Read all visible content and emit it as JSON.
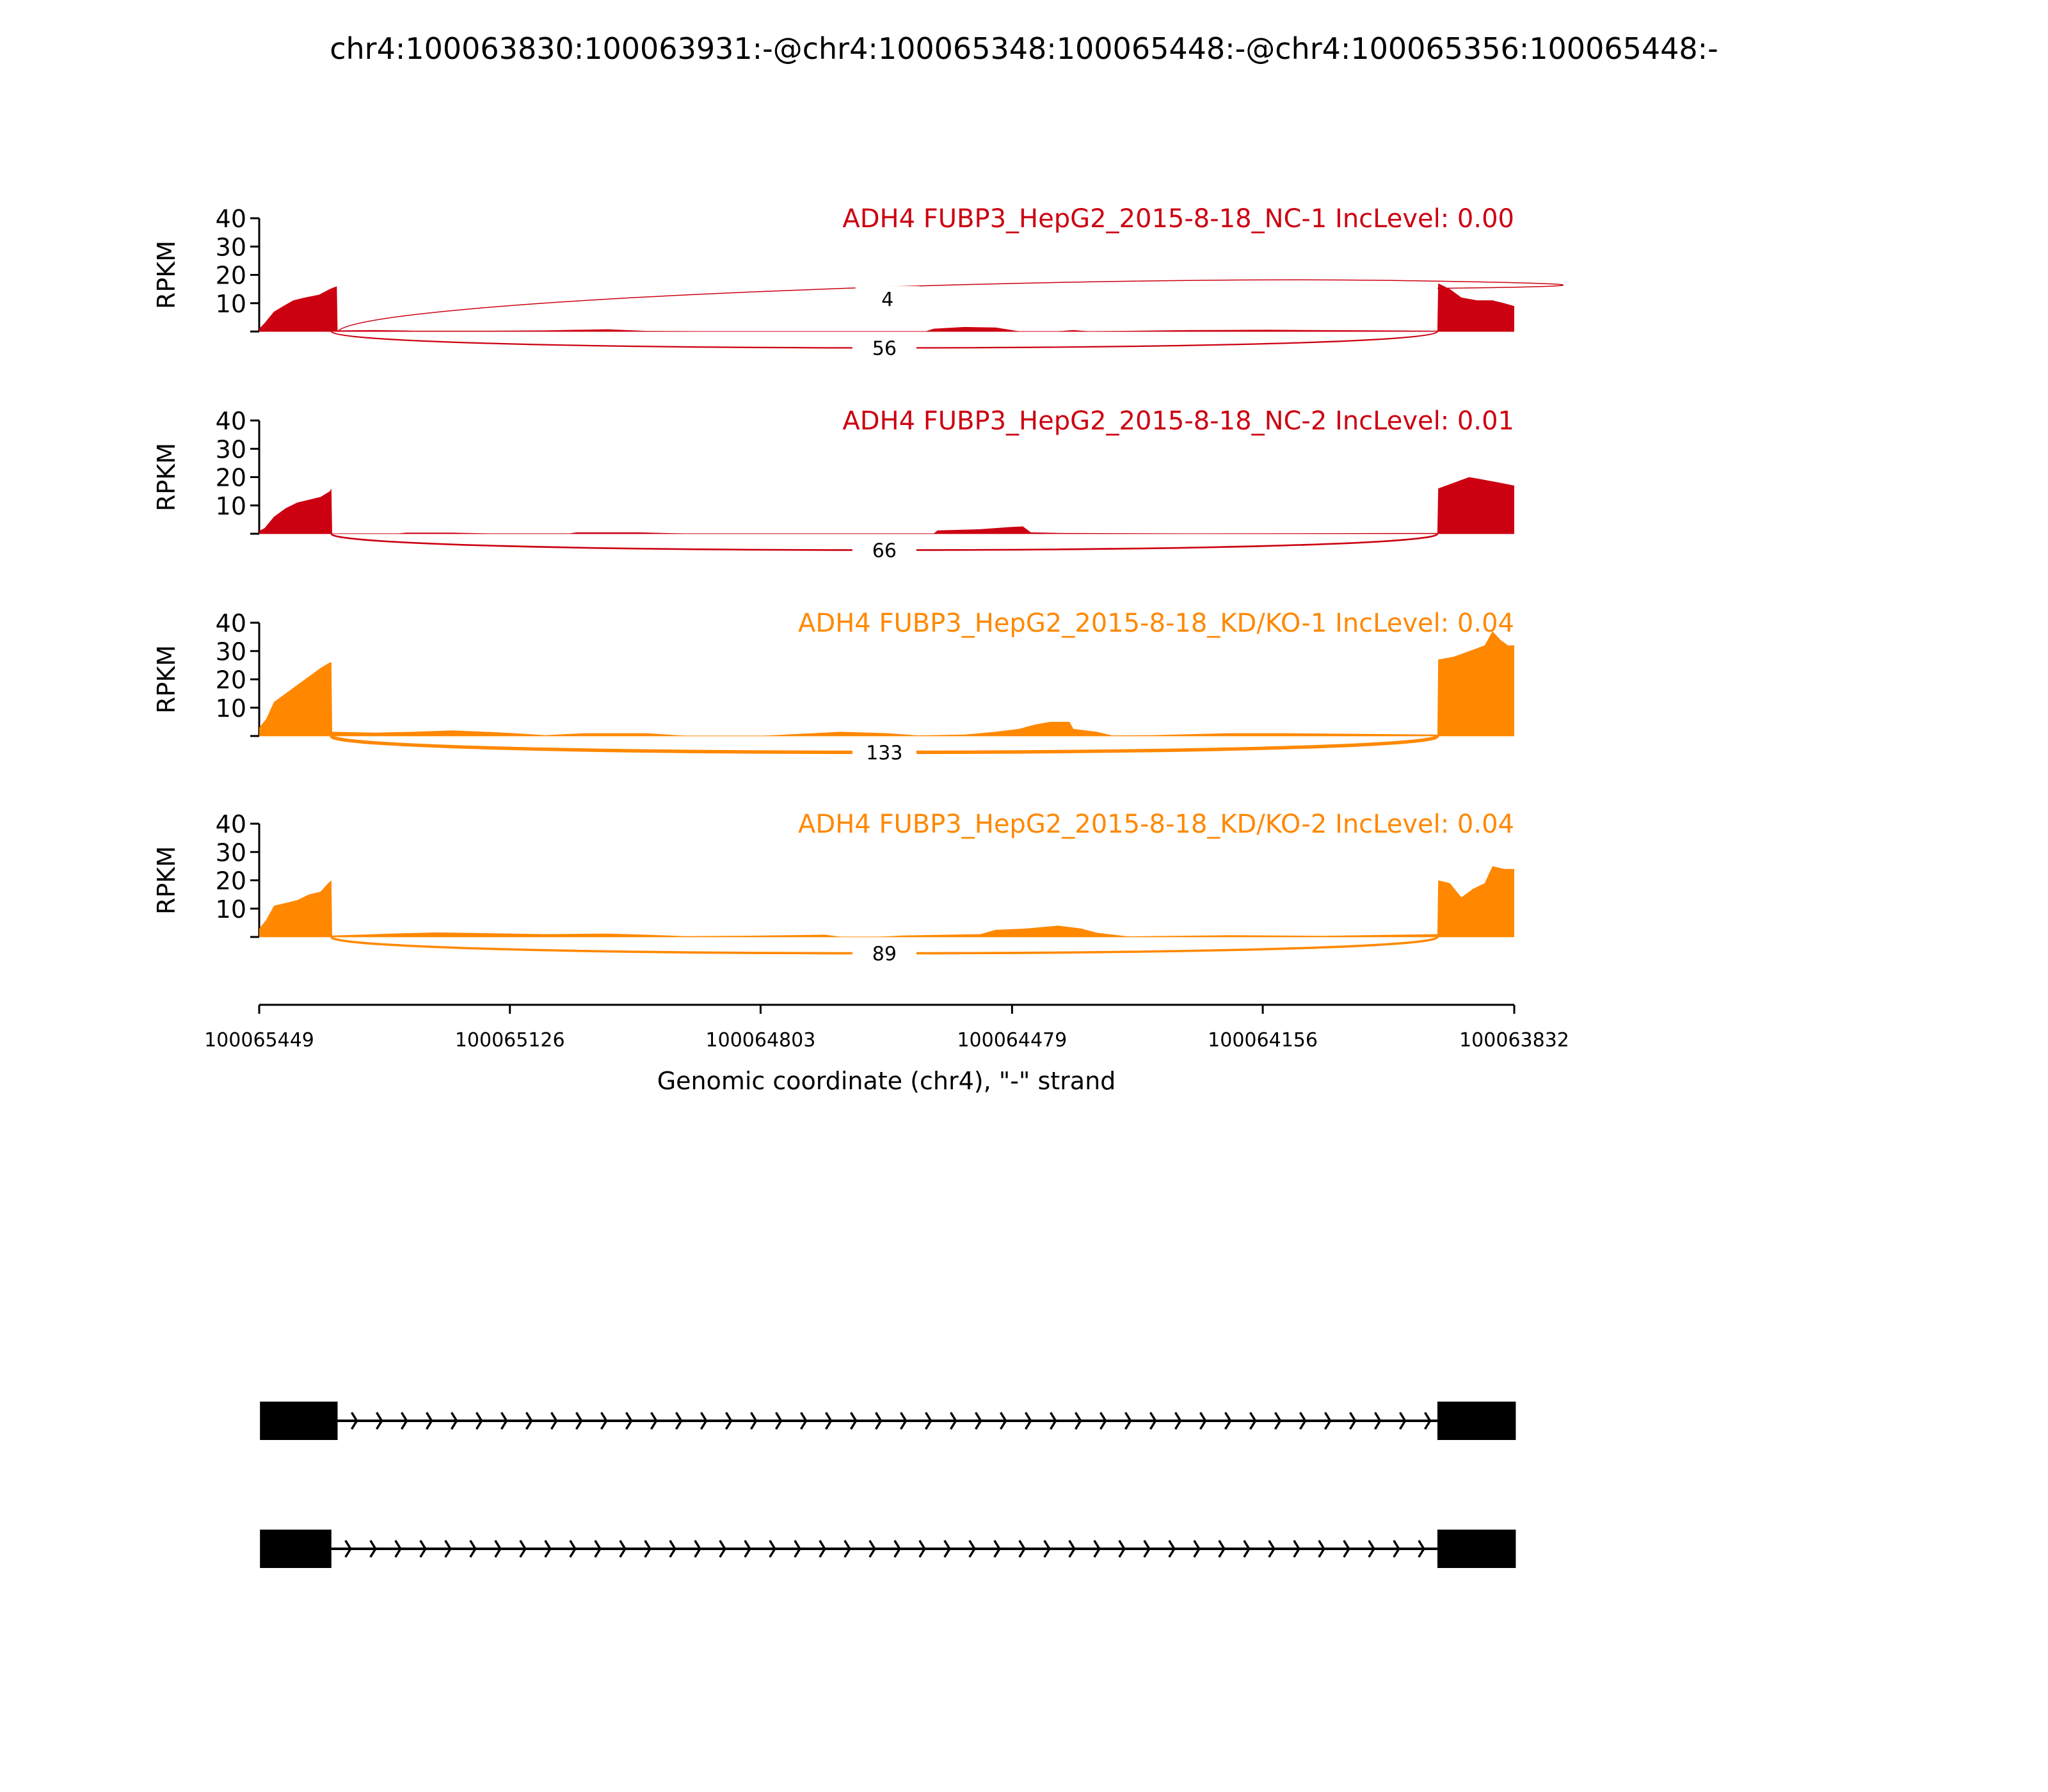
{
  "chart_data": {
    "type": "area",
    "title": "chr4:100063830:100063931:-@chr4:100065348:100065448:-@chr4:100065356:100065448:-",
    "xlabel": "Genomic coordinate (chr4), \"-\" strand",
    "ylabel": "RPKM",
    "xlim": [
      100065449,
      100063832
    ],
    "x_reversed": true,
    "xticks": [
      "100065449",
      "100065126",
      "100064803",
      "100064479",
      "100064156",
      "100063832"
    ],
    "ylim": [
      0,
      40
    ],
    "yticks": [
      "10",
      "20",
      "30",
      "40"
    ],
    "grid": false,
    "colors": {
      "NC": "#CC0011",
      "KD": "#FF8800",
      "gene": "#000000"
    },
    "panels": [
      {
        "label": "ADH4 FUBP3_HepG2_2015-8-18_NC-1 IncLevel: 0.00",
        "group": "NC",
        "coverage": [
          [
            100065449,
            1
          ],
          [
            100065442,
            3
          ],
          [
            100065430,
            7
          ],
          [
            100065418,
            9
          ],
          [
            100065405,
            11
          ],
          [
            100065390,
            12
          ],
          [
            100065372,
            13
          ],
          [
            100065358,
            15
          ],
          [
            100065349,
            16
          ],
          [
            100065348,
            0.4
          ],
          [
            100065300,
            0.5
          ],
          [
            100065250,
            0.3
          ],
          [
            100065150,
            0.3
          ],
          [
            100065080,
            0.4
          ],
          [
            100065000,
            0.8
          ],
          [
            100064950,
            0.2
          ],
          [
            100064880,
            0.1
          ],
          [
            100064590,
            0.1
          ],
          [
            100064580,
            1.0
          ],
          [
            100064540,
            1.6
          ],
          [
            100064500,
            1.4
          ],
          [
            100064470,
            0.1
          ],
          [
            100064420,
            0.1
          ],
          [
            100064400,
            0.5
          ],
          [
            100064380,
            0.1
          ],
          [
            100064250,
            0.5
          ],
          [
            100064150,
            0.6
          ],
          [
            100063931,
            0.3
          ],
          [
            100063930,
            17
          ],
          [
            100063915,
            15
          ],
          [
            100063900,
            12
          ],
          [
            100063880,
            11
          ],
          [
            100063860,
            11
          ],
          [
            100063845,
            10
          ],
          [
            100063832,
            9
          ]
        ],
        "junctions": [
          {
            "count": "4",
            "position": "above",
            "from": 100065348,
            "to": 100063931
          },
          {
            "count": "56",
            "position": "below",
            "from": 100065356,
            "to": 100063931
          }
        ]
      },
      {
        "label": "ADH4 FUBP3_HepG2_2015-8-18_NC-2 IncLevel: 0.01",
        "group": "NC",
        "coverage": [
          [
            100065449,
            1
          ],
          [
            100065442,
            2
          ],
          [
            100065430,
            6
          ],
          [
            100065415,
            9
          ],
          [
            100065400,
            11
          ],
          [
            100065385,
            12
          ],
          [
            100065370,
            13
          ],
          [
            100065358,
            15
          ],
          [
            100065356,
            16
          ],
          [
            100065355,
            0.1
          ],
          [
            100065270,
            0.1
          ],
          [
            100065260,
            0.4
          ],
          [
            100065200,
            0.4
          ],
          [
            100065150,
            0.1
          ],
          [
            100065050,
            0.1
          ],
          [
            100065040,
            0.5
          ],
          [
            100064960,
            0.5
          ],
          [
            100064900,
            0.1
          ],
          [
            100064580,
            0.1
          ],
          [
            100064575,
            1.2
          ],
          [
            100064520,
            1.6
          ],
          [
            100064480,
            2.4
          ],
          [
            100064465,
            2.6
          ],
          [
            100064455,
            0.5
          ],
          [
            100064420,
            0.3
          ],
          [
            100064250,
            0.1
          ],
          [
            100063931,
            0.3
          ],
          [
            100063930,
            16
          ],
          [
            100063910,
            18
          ],
          [
            100063890,
            20
          ],
          [
            100063870,
            19
          ],
          [
            100063850,
            18
          ],
          [
            100063832,
            17
          ]
        ],
        "junctions": [
          {
            "count": "66",
            "position": "below",
            "from": 100065356,
            "to": 100063931
          }
        ]
      },
      {
        "label": "ADH4 FUBP3_HepG2_2015-8-18_KD/KO-1 IncLevel: 0.04",
        "group": "KD",
        "coverage": [
          [
            100065449,
            3
          ],
          [
            100065440,
            6
          ],
          [
            100065430,
            12
          ],
          [
            100065415,
            15
          ],
          [
            100065400,
            18
          ],
          [
            100065385,
            21
          ],
          [
            100065370,
            24
          ],
          [
            100065358,
            26
          ],
          [
            100065356,
            26
          ],
          [
            100065355,
            1.5
          ],
          [
            100065300,
            1.2
          ],
          [
            100065250,
            1.5
          ],
          [
            100065200,
            2
          ],
          [
            100065150,
            1.4
          ],
          [
            100065120,
            1
          ],
          [
            100065080,
            0.3
          ],
          [
            100065030,
            1
          ],
          [
            100064950,
            1
          ],
          [
            100064900,
            0.1
          ],
          [
            100064800,
            0.1
          ],
          [
            100064750,
            0.8
          ],
          [
            100064700,
            1.5
          ],
          [
            100064640,
            1
          ],
          [
            100064600,
            0.2
          ],
          [
            100064540,
            0.5
          ],
          [
            100064500,
            1.5
          ],
          [
            100064470,
            2.5
          ],
          [
            100064450,
            4
          ],
          [
            100064430,
            5
          ],
          [
            100064405,
            5
          ],
          [
            100064400,
            2.5
          ],
          [
            100064370,
            1.5
          ],
          [
            100064350,
            0.2
          ],
          [
            100064300,
            0.3
          ],
          [
            100064200,
            1
          ],
          [
            100064130,
            1
          ],
          [
            100063931,
            0.5
          ],
          [
            100063930,
            27
          ],
          [
            100063910,
            28
          ],
          [
            100063890,
            30
          ],
          [
            100063870,
            32
          ],
          [
            100063860,
            37
          ],
          [
            100063850,
            34
          ],
          [
            100063840,
            32
          ],
          [
            100063832,
            32
          ]
        ],
        "junctions": [
          {
            "count": "133",
            "position": "below",
            "from": 100065356,
            "to": 100063931
          }
        ]
      },
      {
        "label": "ADH4 FUBP3_HepG2_2015-8-18_KD/KO-2 IncLevel: 0.04",
        "group": "KD",
        "coverage": [
          [
            100065449,
            3
          ],
          [
            100065440,
            6
          ],
          [
            100065430,
            11
          ],
          [
            100065415,
            12
          ],
          [
            100065400,
            13
          ],
          [
            100065385,
            15
          ],
          [
            100065370,
            16
          ],
          [
            100065360,
            19
          ],
          [
            100065356,
            20
          ],
          [
            100065355,
            0.5
          ],
          [
            100065320,
            0.8
          ],
          [
            100065280,
            1.2
          ],
          [
            100065220,
            1.6
          ],
          [
            100065150,
            1.3
          ],
          [
            100065080,
            1
          ],
          [
            100065000,
            1.2
          ],
          [
            100064950,
            0.8
          ],
          [
            100064900,
            0.3
          ],
          [
            100064830,
            0.4
          ],
          [
            100064720,
            0.8
          ],
          [
            100064700,
            0.1
          ],
          [
            100064650,
            0.1
          ],
          [
            100064620,
            0.5
          ],
          [
            100064520,
            1
          ],
          [
            100064500,
            2.5
          ],
          [
            100064460,
            3
          ],
          [
            100064420,
            4
          ],
          [
            100064390,
            3
          ],
          [
            100064370,
            1.5
          ],
          [
            100064330,
            0.2
          ],
          [
            100064200,
            0.6
          ],
          [
            100064080,
            0.4
          ],
          [
            100063931,
            1
          ],
          [
            100063930,
            20
          ],
          [
            100063915,
            19
          ],
          [
            100063900,
            14
          ],
          [
            100063885,
            17
          ],
          [
            100063870,
            19
          ],
          [
            100063860,
            25
          ],
          [
            100063845,
            24
          ],
          [
            100063832,
            24
          ]
        ],
        "junctions": [
          {
            "count": "89",
            "position": "below",
            "from": 100065356,
            "to": 100063931
          }
        ]
      }
    ],
    "gene_models": [
      {
        "exons": [
          [
            100065448,
            100065348
          ],
          [
            100063931,
            100063830
          ]
        ],
        "strand": "-"
      },
      {
        "exons": [
          [
            100065448,
            100065356
          ],
          [
            100063931,
            100063830
          ]
        ],
        "strand": "-"
      }
    ]
  }
}
